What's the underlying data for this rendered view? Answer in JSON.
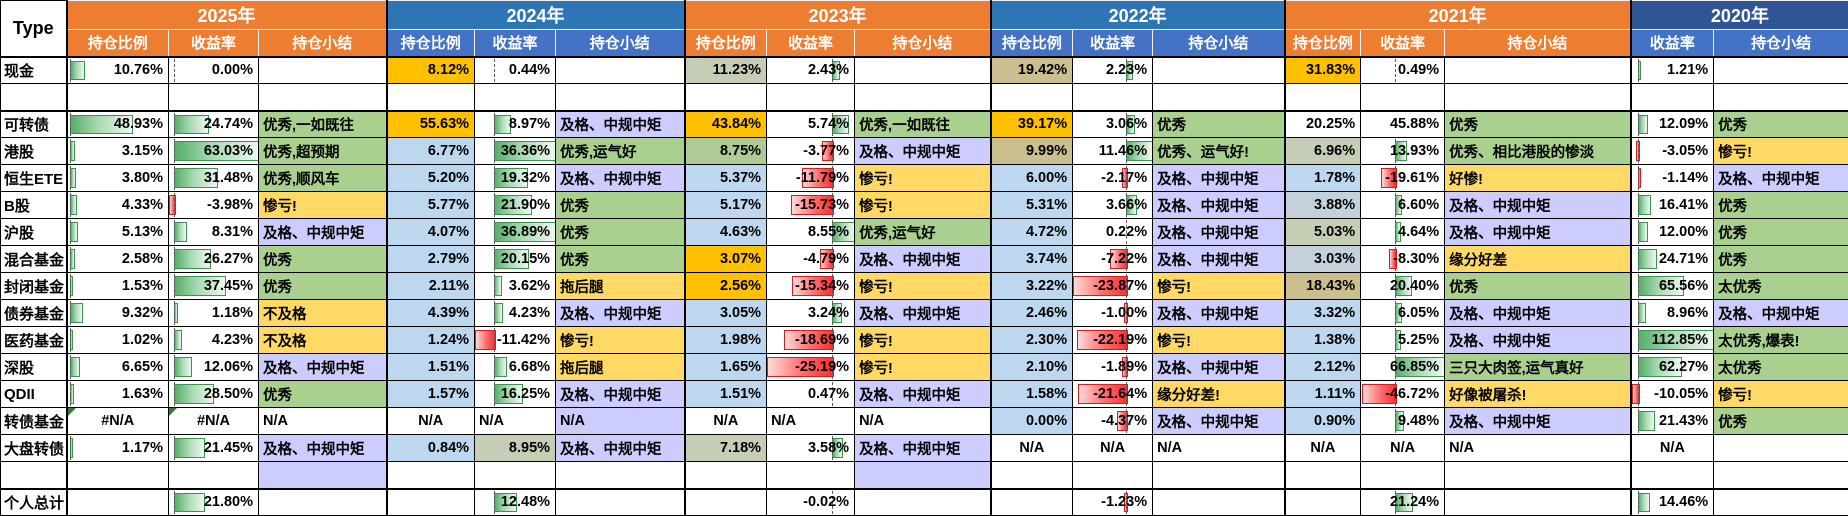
{
  "header": {
    "type_label": "Type",
    "col_names": [
      "持仓比例",
      "收益率",
      "持仓小结"
    ],
    "years": [
      {
        "key": "2025",
        "label": "2025年",
        "band": "#ED7D31",
        "sub": "#ED7D31",
        "cols": [
          "持仓比例",
          "收益率",
          "持仓小结"
        ]
      },
      {
        "key": "2024",
        "label": "2024年",
        "band": "#2E75B6",
        "sub": "#4472C4",
        "cols": [
          "持仓比例",
          "收益率",
          "持仓小结"
        ]
      },
      {
        "key": "2023",
        "label": "2023年",
        "band": "#ED7D31",
        "sub": "#ED7D31",
        "cols": [
          "持仓比例",
          "收益率",
          "持仓小结"
        ]
      },
      {
        "key": "2022",
        "label": "2022年",
        "band": "#2E75B6",
        "sub": "#4472C4",
        "cols": [
          "持仓比例",
          "收益率",
          "持仓小结"
        ]
      },
      {
        "key": "2021",
        "label": "2021年",
        "band": "#ED7D31",
        "sub": "#ED7D31",
        "cols": [
          "持仓比例",
          "收益率",
          "持仓小结"
        ]
      },
      {
        "key": "2020",
        "label": "2020年",
        "band": "#2F5597",
        "sub": "#4472C4",
        "cols": [
          "收益率",
          "持仓小结"
        ]
      }
    ]
  },
  "palette": {
    "ratio_bg": {
      "gold": "#FFC000",
      "blue": "#BDD7EE",
      "khaki": "#CBBF8F",
      "graygreen": "#C5CDB5",
      "green": "#AECB96",
      "bluegray": "#C4D1DB"
    },
    "summary_bg": {
      "grn": "#A9D08E",
      "yel": "#FFD966",
      "lav": "#CCCCFF"
    },
    "bar_pos": "#57ae68",
    "bar_neg": "#ff2e2e",
    "error_triangle": "#2E7D32"
  },
  "bar_scales": {
    "r2025": {
      "min": 0,
      "max": 80
    },
    "returns": [
      {
        "min": -4,
        "max": 63
      },
      {
        "min": -11.42,
        "max": 36.89
      },
      {
        "min": -25.19,
        "max": 8.55
      },
      {
        "min": -23.87,
        "max": 11.46
      },
      {
        "min": -46.72,
        "max": 66.85
      },
      {
        "min": -10.05,
        "max": 112.85
      }
    ]
  },
  "rows": [
    {
      "key": "cash",
      "label": "现金",
      "y": [
        {
          "r": "10.76%",
          "v": "0.00%",
          "s": ""
        },
        {
          "r": "8.12%",
          "rbg": "gold",
          "v": "0.44%",
          "s": ""
        },
        {
          "r": "11.23%",
          "rbg": "graygreen",
          "v": "2.43%",
          "s": ""
        },
        {
          "r": "19.42%",
          "rbg": "khaki",
          "v": "2.23%",
          "s": ""
        },
        {
          "r": "31.83%",
          "rbg": "gold",
          "v": "0.49%",
          "s": ""
        },
        {
          "v": "1.21%",
          "s": ""
        }
      ]
    },
    {
      "key": "blank-1",
      "label": "",
      "y": [
        {},
        {},
        {},
        {},
        {},
        {}
      ]
    },
    {
      "key": "convertible-bond",
      "label": "可转债",
      "y": [
        {
          "r": "48.93%",
          "v": "24.74%",
          "s": "优秀,一如既往",
          "sbg": "grn"
        },
        {
          "r": "55.63%",
          "rbg": "gold",
          "v": "8.97%",
          "s": "及格、中规中矩",
          "sbg": "lav"
        },
        {
          "r": "43.84%",
          "rbg": "gold",
          "v": "5.74%",
          "s": "优秀,一如既往",
          "sbg": "grn"
        },
        {
          "r": "39.17%",
          "rbg": "gold",
          "v": "3.06%",
          "s": "优秀",
          "sbg": "grn"
        },
        {
          "r": "20.25%",
          "v": "45.88%",
          "nb": 1,
          "s": "优秀",
          "sbg": "grn"
        },
        {
          "v": "12.09%",
          "s": "优秀",
          "sbg": "grn"
        }
      ]
    },
    {
      "key": "hk-stock",
      "label": "港股",
      "y": [
        {
          "r": "3.15%",
          "v": "63.03%",
          "s": "优秀,超预期",
          "sbg": "grn"
        },
        {
          "r": "6.77%",
          "rbg": "blue",
          "v": "36.36%",
          "s": "优秀,运气好",
          "sbg": "grn"
        },
        {
          "r": "8.75%",
          "rbg": "green",
          "v": "-3.77%",
          "s": "及格、中规中矩",
          "sbg": "lav"
        },
        {
          "r": "9.99%",
          "rbg": "khaki",
          "v": "11.46%",
          "s": "优秀、运气好!",
          "sbg": "grn"
        },
        {
          "r": "6.96%",
          "rbg": "graygreen",
          "v": "13.93%",
          "s": "优秀、相比港股的惨淡",
          "sbg": "grn"
        },
        {
          "v": "-3.05%",
          "s": "惨亏!",
          "sbg": "yel"
        }
      ]
    },
    {
      "key": "hangseng-ete",
      "label": "恒生ETE",
      "y": [
        {
          "r": "3.80%",
          "v": "31.48%",
          "s": "优秀,顺风车",
          "sbg": "grn"
        },
        {
          "r": "5.20%",
          "rbg": "blue",
          "v": "19.32%",
          "s": "及格、中规中矩",
          "sbg": "lav"
        },
        {
          "r": "5.37%",
          "rbg": "blue",
          "v": "-11.79%",
          "s": "惨亏!",
          "sbg": "yel"
        },
        {
          "r": "6.00%",
          "rbg": "blue",
          "v": "-2.17%",
          "s": "及格、中规中矩",
          "sbg": "lav"
        },
        {
          "r": "1.78%",
          "rbg": "blue",
          "v": "-19.61%",
          "s": "好惨!",
          "sbg": "yel"
        },
        {
          "v": "-1.14%",
          "s": "及格、中规中矩",
          "sbg": "lav"
        }
      ]
    },
    {
      "key": "b-share",
      "label": "B股",
      "y": [
        {
          "r": "4.33%",
          "v": "-3.98%",
          "s": "惨亏!",
          "sbg": "yel"
        },
        {
          "r": "5.77%",
          "rbg": "blue",
          "v": "21.90%",
          "s": "优秀",
          "sbg": "grn"
        },
        {
          "r": "5.17%",
          "rbg": "blue",
          "v": "-15.73%",
          "s": "惨亏!",
          "sbg": "yel"
        },
        {
          "r": "5.31%",
          "rbg": "blue",
          "v": "3.66%",
          "s": "及格、中规中矩",
          "sbg": "lav"
        },
        {
          "r": "3.88%",
          "rbg": "bluegray",
          "v": "6.60%",
          "s": "及格、中规中矩",
          "sbg": "lav"
        },
        {
          "v": "16.41%",
          "s": "优秀",
          "sbg": "grn"
        }
      ]
    },
    {
      "key": "sh-stock",
      "label": "沪股",
      "y": [
        {
          "r": "5.13%",
          "v": "8.31%",
          "s": "及格、中规中矩",
          "sbg": "lav"
        },
        {
          "r": "4.07%",
          "rbg": "blue",
          "v": "36.89%",
          "s": "优秀",
          "sbg": "grn"
        },
        {
          "r": "4.63%",
          "rbg": "blue",
          "v": "8.55%",
          "s": "优秀,运气好",
          "sbg": "grn"
        },
        {
          "r": "4.72%",
          "rbg": "blue",
          "v": "0.22%",
          "s": "及格、中规中矩",
          "sbg": "lav"
        },
        {
          "r": "5.03%",
          "rbg": "graygreen",
          "v": "4.64%",
          "s": "及格、中规中矩",
          "sbg": "lav"
        },
        {
          "v": "12.00%",
          "s": "优秀",
          "sbg": "grn"
        }
      ]
    },
    {
      "key": "mixed-fund",
      "label": "混合基金",
      "y": [
        {
          "r": "2.58%",
          "v": "26.27%",
          "s": "优秀",
          "sbg": "grn"
        },
        {
          "r": "2.79%",
          "rbg": "blue",
          "v": "20.15%",
          "s": "优秀",
          "sbg": "grn"
        },
        {
          "r": "3.07%",
          "rbg": "gold",
          "v": "-4.79%",
          "s": "及格、中规中矩",
          "sbg": "lav"
        },
        {
          "r": "3.74%",
          "rbg": "blue",
          "v": "-7.22%",
          "s": "及格、中规中矩",
          "sbg": "lav"
        },
        {
          "r": "3.03%",
          "rbg": "bluegray",
          "v": "-8.30%",
          "s": "缘分好差",
          "sbg": "yel"
        },
        {
          "v": "24.71%",
          "s": "优秀",
          "sbg": "grn"
        }
      ]
    },
    {
      "key": "closed-fund",
      "label": "封闭基金",
      "y": [
        {
          "r": "1.53%",
          "v": "37.45%",
          "s": "优秀",
          "sbg": "grn"
        },
        {
          "r": "2.11%",
          "rbg": "blue",
          "v": "3.62%",
          "s": "拖后腿",
          "sbg": "yel"
        },
        {
          "r": "2.56%",
          "rbg": "gold",
          "v": "-15.34%",
          "s": "惨亏!",
          "sbg": "yel"
        },
        {
          "r": "3.22%",
          "rbg": "blue",
          "v": "-23.87%",
          "s": "惨亏!",
          "sbg": "yel"
        },
        {
          "r": "18.43%",
          "rbg": "khaki",
          "v": "20.40%",
          "s": "优秀",
          "sbg": "grn"
        },
        {
          "v": "65.56%",
          "s": "太优秀",
          "sbg": "grn"
        }
      ]
    },
    {
      "key": "bond-fund",
      "label": "债券基金",
      "y": [
        {
          "r": "9.32%",
          "v": "1.18%",
          "s": "不及格",
          "sbg": "yel"
        },
        {
          "r": "4.39%",
          "rbg": "blue",
          "v": "4.23%",
          "s": "及格、中规中矩",
          "sbg": "lav"
        },
        {
          "r": "3.05%",
          "rbg": "blue",
          "v": "3.24%",
          "s": "及格、中规中矩",
          "sbg": "lav"
        },
        {
          "r": "2.46%",
          "rbg": "blue",
          "v": "-1.00%",
          "s": "及格、中规中矩",
          "sbg": "lav"
        },
        {
          "r": "3.32%",
          "rbg": "blue",
          "v": "6.05%",
          "s": "及格、中规中矩",
          "sbg": "lav"
        },
        {
          "v": "8.96%",
          "s": "及格、中规中矩",
          "sbg": "lav"
        }
      ]
    },
    {
      "key": "pharma-fund",
      "label": "医药基金",
      "y": [
        {
          "r": "1.02%",
          "v": "4.23%",
          "s": "不及格",
          "sbg": "yel"
        },
        {
          "r": "1.24%",
          "rbg": "blue",
          "v": "-11.42%",
          "s": "惨亏!",
          "sbg": "yel"
        },
        {
          "r": "1.98%",
          "rbg": "blue",
          "v": "-18.69%",
          "s": "惨亏!",
          "sbg": "yel"
        },
        {
          "r": "2.30%",
          "rbg": "blue",
          "v": "-22.19%",
          "s": "惨亏!",
          "sbg": "yel"
        },
        {
          "r": "1.38%",
          "rbg": "blue",
          "v": "5.25%",
          "s": "及格、中规中矩",
          "sbg": "lav"
        },
        {
          "v": "112.85%",
          "s": "太优秀,爆表!",
          "sbg": "grn"
        }
      ]
    },
    {
      "key": "sz-stock",
      "label": "深股",
      "y": [
        {
          "r": "6.65%",
          "v": "12.06%",
          "s": "及格、中规中矩",
          "sbg": "lav"
        },
        {
          "r": "1.51%",
          "rbg": "blue",
          "v": "6.68%",
          "s": "拖后腿",
          "sbg": "yel"
        },
        {
          "r": "1.65%",
          "rbg": "blue",
          "v": "-25.19%",
          "s": "惨亏!",
          "sbg": "yel"
        },
        {
          "r": "2.10%",
          "rbg": "blue",
          "v": "-1.89%",
          "s": "及格、中规中矩",
          "sbg": "lav"
        },
        {
          "r": "2.12%",
          "rbg": "blue",
          "v": "66.85%",
          "s": "三只大肉签,运气真好",
          "sbg": "grn"
        },
        {
          "v": "62.27%",
          "s": "太优秀",
          "sbg": "grn"
        }
      ]
    },
    {
      "key": "qdii",
      "label": "QDII",
      "y": [
        {
          "r": "1.63%",
          "v": "28.50%",
          "s": "优秀",
          "sbg": "grn"
        },
        {
          "r": "1.57%",
          "rbg": "blue",
          "v": "16.25%",
          "s": "及格、中规中矩",
          "sbg": "lav"
        },
        {
          "r": "1.51%",
          "rbg": "blue",
          "v": "0.47%",
          "s": "及格、中规中矩",
          "sbg": "lav"
        },
        {
          "r": "1.58%",
          "rbg": "blue",
          "v": "-21.64%",
          "s": "缘分好差!",
          "sbg": "yel"
        },
        {
          "r": "1.11%",
          "rbg": "blue",
          "v": "-46.72%",
          "s": "好像被屠杀!",
          "sbg": "yel"
        },
        {
          "v": "-10.05%",
          "s": "惨亏!",
          "sbg": "yel"
        }
      ]
    },
    {
      "key": "cb-fund",
      "label": "转债基金",
      "y": [
        {
          "r": "#N/A",
          "err": 1,
          "v": "#N/A",
          "verr": 1,
          "s": "N/A"
        },
        {
          "r": "N/A",
          "v": "N/A",
          "va": "left",
          "s": "N/A",
          "sbg": "lav",
          "sa": "left"
        },
        {
          "r": "N/A",
          "v": "N/A",
          "va": "left",
          "s": "N/A"
        },
        {
          "r": "0.00%",
          "rbg": "blue",
          "v": "-4.37%",
          "s": "及格、中规中矩",
          "sbg": "lav"
        },
        {
          "r": "0.90%",
          "rbg": "blue",
          "v": "9.48%",
          "s": "及格、中规中矩",
          "sbg": "lav"
        },
        {
          "v": "21.43%",
          "s": "优秀",
          "sbg": "grn"
        }
      ]
    },
    {
      "key": "large-cap-cb",
      "label": "大盘转债",
      "y": [
        {
          "r": "1.17%",
          "v": "21.45%",
          "s": "及格、中规中矩",
          "sbg": "lav"
        },
        {
          "r": "0.84%",
          "rbg": "blue",
          "v": "8.95%",
          "vbg": "graygreen",
          "nb": 1,
          "s": "及格、中规中矩",
          "sbg": "lav"
        },
        {
          "r": "7.18%",
          "rbg": "graygreen",
          "v": "3.58%",
          "s": "及格、中规中矩",
          "sbg": "lav"
        },
        {
          "r": "N/A",
          "v": "N/A",
          "s": "N/A"
        },
        {
          "r": "N/A",
          "v": "N/A",
          "s": "N/A"
        },
        {
          "v": "N/A",
          "s": ""
        }
      ]
    },
    {
      "key": "blank-2",
      "label": "",
      "y": [
        {
          "s": "",
          "sbg": "lav"
        },
        {},
        {
          "s": "",
          "sbg": "lav"
        },
        {},
        {},
        {}
      ]
    },
    {
      "key": "personal-total",
      "label": "个人总计",
      "y": [
        {
          "v": "21.80%",
          "s": ""
        },
        {
          "v": "12.48%",
          "s": ""
        },
        {
          "v": "-0.02%",
          "s": ""
        },
        {
          "v": "-1.23%",
          "s": ""
        },
        {
          "v": "21.24%",
          "s": ""
        },
        {
          "v": "14.46%",
          "s": ""
        }
      ]
    }
  ]
}
